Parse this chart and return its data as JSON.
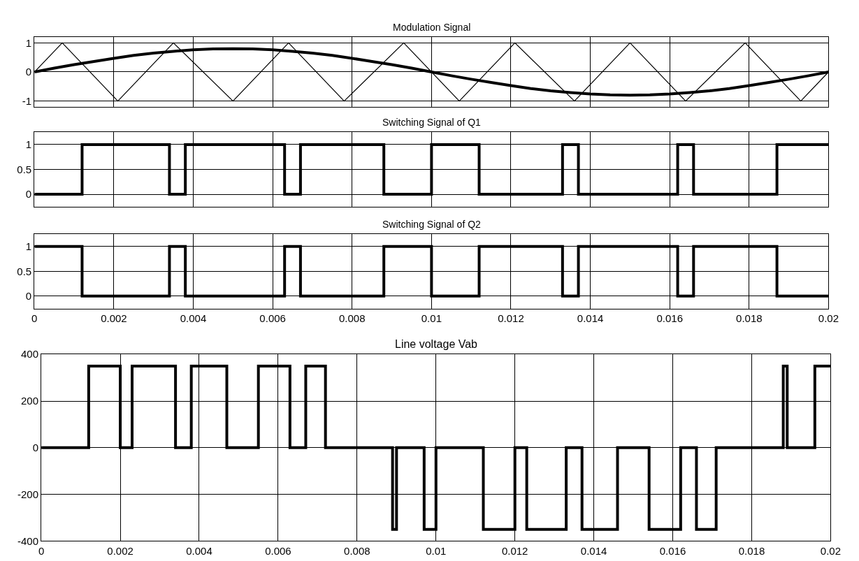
{
  "chart_data": [
    {
      "type": "line",
      "title": "Modulation Signal",
      "xlim": [
        0,
        0.02
      ],
      "xticks": [
        0,
        0.002,
        0.004,
        0.006,
        0.008,
        0.01,
        0.012,
        0.014,
        0.016,
        0.018,
        0.02
      ],
      "ylim": [
        -1.2,
        1.2
      ],
      "yticks": [
        -1,
        0,
        1
      ],
      "grid": true,
      "tick_labels": "y",
      "series": [
        {
          "color": "#000000",
          "x": [
            0,
            0.0005,
            0.001,
            0.0015,
            0.002,
            0.0025,
            0.003,
            0.0035,
            0.004,
            0.0045,
            0.005,
            0.0055,
            0.006,
            0.0065,
            0.007,
            0.0075,
            0.008,
            0.0085,
            0.009,
            0.0095,
            0.01,
            0.0105,
            0.011,
            0.0115,
            0.012,
            0.0125,
            0.013,
            0.0135,
            0.014,
            0.0145,
            0.015,
            0.0155,
            0.016,
            0.0165,
            0.017,
            0.0175,
            0.018,
            0.0185,
            0.019,
            0.0195,
            0.02
          ],
          "values": [
            0,
            0.13,
            0.25,
            0.36,
            0.47,
            0.57,
            0.65,
            0.71,
            0.76,
            0.79,
            0.8,
            0.79,
            0.76,
            0.71,
            0.65,
            0.57,
            0.47,
            0.36,
            0.25,
            0.13,
            0,
            -0.13,
            -0.25,
            -0.36,
            -0.47,
            -0.57,
            -0.65,
            -0.71,
            -0.76,
            -0.79,
            -0.8,
            -0.79,
            -0.76,
            -0.71,
            -0.65,
            -0.57,
            -0.47,
            -0.36,
            -0.25,
            -0.13,
            0
          ]
        },
        {
          "color": "#000000",
          "x": [
            0,
            0.0007,
            0.0021,
            0.0035,
            0.005,
            0.0064,
            0.0078,
            0.0093,
            0.0107,
            0.0121,
            0.0136,
            0.015,
            0.0164,
            0.0179,
            0.0193,
            0.02
          ],
          "values": [
            0,
            1,
            -1,
            1,
            -1,
            1,
            -1,
            1,
            -1,
            1,
            -1,
            1,
            -1,
            1,
            -1,
            0
          ]
        }
      ]
    },
    {
      "type": "step",
      "title": "Switching Signal of Q1",
      "xlim": [
        0,
        0.02
      ],
      "xticks": [
        0,
        0.002,
        0.004,
        0.006,
        0.008,
        0.01,
        0.012,
        0.014,
        0.016,
        0.018,
        0.02
      ],
      "ylim": [
        -0.25,
        1.25
      ],
      "yticks": [
        0,
        0.5,
        1
      ],
      "grid": true,
      "tick_labels": "y",
      "series": [
        {
          "color": "#000000",
          "x": [
            0,
            0.0012,
            0.0034,
            0.0038,
            0.0063,
            0.0067,
            0.0088,
            0.01,
            0.0112,
            0.0133,
            0.0137,
            0.0162,
            0.0166,
            0.0187,
            0.02
          ],
          "values": [
            0,
            1,
            0,
            1,
            0,
            1,
            0,
            1,
            0,
            1,
            0,
            1,
            0,
            1,
            1
          ]
        }
      ]
    },
    {
      "type": "step",
      "title": "Switching Signal of Q2",
      "xlim": [
        0,
        0.02
      ],
      "xticks": [
        0,
        0.002,
        0.004,
        0.006,
        0.008,
        0.01,
        0.012,
        0.014,
        0.016,
        0.018,
        0.02
      ],
      "ylim": [
        -0.25,
        1.25
      ],
      "yticks": [
        0,
        0.5,
        1
      ],
      "grid": true,
      "series": [
        {
          "color": "#000000",
          "x": [
            0,
            0.0012,
            0.0034,
            0.0038,
            0.0063,
            0.0067,
            0.0088,
            0.01,
            0.0112,
            0.0133,
            0.0137,
            0.0162,
            0.0166,
            0.0187,
            0.02
          ],
          "values": [
            1,
            0,
            1,
            0,
            1,
            0,
            1,
            0,
            1,
            0,
            1,
            0,
            1,
            0,
            0
          ]
        }
      ]
    },
    {
      "type": "step",
      "title": "Line voltage Vab",
      "xlim": [
        0,
        0.02
      ],
      "xticks": [
        0,
        0.002,
        0.004,
        0.006,
        0.008,
        0.01,
        0.012,
        0.014,
        0.016,
        0.018,
        0.02
      ],
      "ylim": [
        -400,
        400
      ],
      "yticks": [
        -400,
        -200,
        0,
        200,
        400
      ],
      "grid": true,
      "series": [
        {
          "color": "#000000",
          "x": [
            0,
            0.0012,
            0.002,
            0.0023,
            0.0034,
            0.0038,
            0.0047,
            0.0055,
            0.0063,
            0.0067,
            0.0072,
            0.0089,
            0.009,
            0.0097,
            0.01,
            0.0112,
            0.012,
            0.0123,
            0.0133,
            0.0137,
            0.0146,
            0.0154,
            0.0162,
            0.0166,
            0.0171,
            0.0188,
            0.0189,
            0.0196,
            0.02
          ],
          "values": [
            0,
            350,
            0,
            350,
            0,
            350,
            0,
            350,
            0,
            350,
            0,
            -350,
            0,
            -350,
            0,
            -350,
            0,
            -350,
            0,
            -350,
            0,
            -350,
            0,
            -350,
            0,
            350,
            0,
            350,
            350
          ]
        }
      ]
    }
  ]
}
